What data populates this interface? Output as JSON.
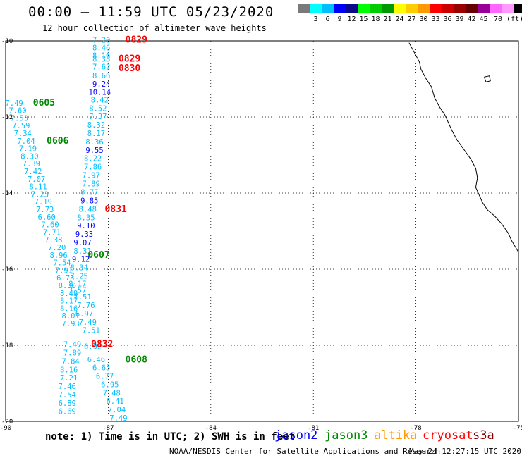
{
  "title": "00:00 — 11:59 UTC 05/23/2020",
  "subtitle": "12 hour collection of altimeter wave heights",
  "colorbar": {
    "colors": [
      "#7a7a7a",
      "#00ffff",
      "#00bfff",
      "#0000ff",
      "#0a0a8a",
      "#00ff00",
      "#00cc00",
      "#009900",
      "#ffff00",
      "#ffcc00",
      "#ff9900",
      "#ff0000",
      "#cc0000",
      "#990000",
      "#660000",
      "#990099",
      "#ff66ff",
      "#ff99ff",
      "#000000"
    ],
    "labels": [
      "3",
      "6",
      "9",
      "12",
      "15",
      "18",
      "21",
      "24",
      "27",
      "30",
      "33",
      "36",
      "39",
      "42",
      "45",
      "70 (ft)"
    ]
  },
  "axes": {
    "x_ticks": [
      "-90",
      "-87",
      "-84",
      "-81",
      "-78",
      "-75"
    ],
    "y_ticks": [
      "-10",
      "-12",
      "-14",
      "-16",
      "-18",
      "-20"
    ]
  },
  "passes": [
    {
      "label": "0829",
      "color": "#ff0000",
      "lon": -86.5,
      "lat": -10.05
    },
    {
      "label": "0829",
      "color": "#ff0000",
      "lon": -86.7,
      "lat": -10.55
    },
    {
      "label": "0830",
      "color": "#ff0000",
      "lon": -86.7,
      "lat": -10.8
    },
    {
      "label": "0605",
      "color": "#008800",
      "lon": -89.2,
      "lat": -11.7
    },
    {
      "label": "0606",
      "color": "#008800",
      "lon": -88.8,
      "lat": -12.7
    },
    {
      "label": "0831",
      "color": "#ff0000",
      "lon": -87.1,
      "lat": -14.5
    },
    {
      "label": "0607",
      "color": "#008800",
      "lon": -87.6,
      "lat": -15.7
    },
    {
      "label": "0832",
      "color": "#ff0000",
      "lon": -87.5,
      "lat": -18.05
    },
    {
      "label": "0608",
      "color": "#008800",
      "lon": -86.5,
      "lat": -18.45
    }
  ],
  "wave_heights": [
    {
      "v": "7.20",
      "lon": -87.2,
      "lat": -10.05,
      "c": "#00bfff"
    },
    {
      "v": "8.46",
      "lon": -87.2,
      "lat": -10.25,
      "c": "#00bfff"
    },
    {
      "v": "8.16",
      "lon": -87.2,
      "lat": -10.45,
      "c": "#00bfff"
    },
    {
      "v": "8.38",
      "lon": -87.2,
      "lat": -10.55,
      "c": "#00bfff"
    },
    {
      "v": "7.62",
      "lon": -87.2,
      "lat": -10.75,
      "c": "#00bfff"
    },
    {
      "v": "8.66",
      "lon": -87.2,
      "lat": -10.98,
      "c": "#00bfff"
    },
    {
      "v": "9.24",
      "lon": -87.2,
      "lat": -11.2,
      "c": "#0000ff"
    },
    {
      "v": "10.14",
      "lon": -87.25,
      "lat": -11.42,
      "c": "#0000ff"
    },
    {
      "v": "8.42",
      "lon": -87.25,
      "lat": -11.62,
      "c": "#00bfff"
    },
    {
      "v": "8.52",
      "lon": -87.3,
      "lat": -11.84,
      "c": "#00bfff"
    },
    {
      "v": "7.37",
      "lon": -87.3,
      "lat": -12.06,
      "c": "#00bfff"
    },
    {
      "v": "8.32",
      "lon": -87.35,
      "lat": -12.28,
      "c": "#00bfff"
    },
    {
      "v": "8.17",
      "lon": -87.35,
      "lat": -12.5,
      "c": "#00bfff"
    },
    {
      "v": "8.36",
      "lon": -87.4,
      "lat": -12.72,
      "c": "#00bfff"
    },
    {
      "v": "9.55",
      "lon": -87.4,
      "lat": -12.94,
      "c": "#0000ff"
    },
    {
      "v": "8.22",
      "lon": -87.45,
      "lat": -13.16,
      "c": "#00bfff"
    },
    {
      "v": "7.86",
      "lon": -87.45,
      "lat": -13.38,
      "c": "#00bfff"
    },
    {
      "v": "7.97",
      "lon": -87.5,
      "lat": -13.6,
      "c": "#00bfff"
    },
    {
      "v": "7.89",
      "lon": -87.5,
      "lat": -13.82,
      "c": "#00bfff"
    },
    {
      "v": "8.77",
      "lon": -87.55,
      "lat": -14.05,
      "c": "#00bfff"
    },
    {
      "v": "9.85",
      "lon": -87.55,
      "lat": -14.27,
      "c": "#0000ff"
    },
    {
      "v": "8.48",
      "lon": -87.6,
      "lat": -14.49,
      "c": "#00bfff"
    },
    {
      "v": "8.35",
      "lon": -87.65,
      "lat": -14.71,
      "c": "#00bfff"
    },
    {
      "v": "9.10",
      "lon": -87.65,
      "lat": -14.93,
      "c": "#0000ff"
    },
    {
      "v": "9.33",
      "lon": -87.7,
      "lat": -15.15,
      "c": "#0000ff"
    },
    {
      "v": "9.07",
      "lon": -87.75,
      "lat": -15.37,
      "c": "#0000ff"
    },
    {
      "v": "8.31",
      "lon": -87.75,
      "lat": -15.59,
      "c": "#00bfff"
    },
    {
      "v": "9.12",
      "lon": -87.8,
      "lat": -15.81,
      "c": "#0000ff"
    },
    {
      "v": "8.34",
      "lon": -87.85,
      "lat": -16.03,
      "c": "#00bfff"
    },
    {
      "v": "7.25",
      "lon": -87.85,
      "lat": -16.25,
      "c": "#00bfff"
    },
    {
      "v": "8.17",
      "lon": -87.9,
      "lat": -16.45,
      "c": "#00bfff"
    },
    {
      "v": "7.57",
      "lon": -87.9,
      "lat": -16.62,
      "c": "#00bfff"
    },
    {
      "v": "7.51",
      "lon": -87.75,
      "lat": -16.8,
      "c": "#00bfff"
    },
    {
      "v": "7.76",
      "lon": -87.65,
      "lat": -17.02,
      "c": "#00bfff"
    },
    {
      "v": "6.97",
      "lon": -87.7,
      "lat": -17.24,
      "c": "#00bfff"
    },
    {
      "v": "7.49",
      "lon": -87.6,
      "lat": -17.46,
      "c": "#00bfff"
    },
    {
      "v": "7.51",
      "lon": -87.5,
      "lat": -17.68,
      "c": "#00bfff"
    },
    {
      "v": "6.92",
      "lon": -87.45,
      "lat": -18.1,
      "c": "#00bfff"
    },
    {
      "v": "6.46",
      "lon": -87.35,
      "lat": -18.44,
      "c": "#00bfff"
    },
    {
      "v": "6.65",
      "lon": -87.2,
      "lat": -18.66,
      "c": "#00bfff"
    },
    {
      "v": "6.77",
      "lon": -87.1,
      "lat": -18.88,
      "c": "#00bfff"
    },
    {
      "v": "6.95",
      "lon": -86.95,
      "lat": -19.1,
      "c": "#00bfff"
    },
    {
      "v": "7.48",
      "lon": -86.9,
      "lat": -19.32,
      "c": "#00bfff"
    },
    {
      "v": "6.41",
      "lon": -86.8,
      "lat": -19.54,
      "c": "#00bfff"
    },
    {
      "v": "7.04",
      "lon": -86.75,
      "lat": -19.76,
      "c": "#00bfff"
    },
    {
      "v": "7.49",
      "lon": -86.7,
      "lat": -19.98,
      "c": "#00bfff"
    },
    {
      "v": "7.49",
      "lon": -89.75,
      "lat": -11.7,
      "c": "#00bfff"
    },
    {
      "v": "7.60",
      "lon": -89.65,
      "lat": -11.9,
      "c": "#00bfff"
    },
    {
      "v": "7.53",
      "lon": -89.6,
      "lat": -12.1,
      "c": "#00bfff"
    },
    {
      "v": "7.59",
      "lon": -89.55,
      "lat": -12.3,
      "c": "#00bfff"
    },
    {
      "v": "7.34",
      "lon": -89.5,
      "lat": -12.5,
      "c": "#00bfff"
    },
    {
      "v": "7.04",
      "lon": -89.4,
      "lat": -12.7,
      "c": "#00bfff"
    },
    {
      "v": "7.19",
      "lon": -89.35,
      "lat": -12.9,
      "c": "#00bfff"
    },
    {
      "v": "8.30",
      "lon": -89.3,
      "lat": -13.1,
      "c": "#00bfff"
    },
    {
      "v": "7.39",
      "lon": -89.25,
      "lat": -13.3,
      "c": "#00bfff"
    },
    {
      "v": "7.42",
      "lon": -89.2,
      "lat": -13.5,
      "c": "#00bfff"
    },
    {
      "v": "7.07",
      "lon": -89.1,
      "lat": -13.7,
      "c": "#00bfff"
    },
    {
      "v": "8.11",
      "lon": -89.05,
      "lat": -13.9,
      "c": "#00bfff"
    },
    {
      "v": "7.23",
      "lon": -89.0,
      "lat": -14.1,
      "c": "#00bfff"
    },
    {
      "v": "7.19",
      "lon": -88.9,
      "lat": -14.3,
      "c": "#00bfff"
    },
    {
      "v": "7.73",
      "lon": -88.85,
      "lat": -14.5,
      "c": "#00bfff"
    },
    {
      "v": "6.60",
      "lon": -88.8,
      "lat": -14.7,
      "c": "#00bfff"
    },
    {
      "v": "7.60",
      "lon": -88.7,
      "lat": -14.9,
      "c": "#00bfff"
    },
    {
      "v": "7.71",
      "lon": -88.65,
      "lat": -15.1,
      "c": "#00bfff"
    },
    {
      "v": "7.38",
      "lon": -88.6,
      "lat": -15.3,
      "c": "#00bfff"
    },
    {
      "v": "7.20",
      "lon": -88.5,
      "lat": -15.5,
      "c": "#00bfff"
    },
    {
      "v": "8.96",
      "lon": -88.45,
      "lat": -15.7,
      "c": "#00bfff"
    },
    {
      "v": "7.54",
      "lon": -88.35,
      "lat": -15.9,
      "c": "#00bfff"
    },
    {
      "v": "7.91",
      "lon": -88.3,
      "lat": -16.1,
      "c": "#00bfff"
    },
    {
      "v": "6.73",
      "lon": -88.25,
      "lat": -16.3,
      "c": "#00bfff"
    },
    {
      "v": "8.30",
      "lon": -88.2,
      "lat": -16.5,
      "c": "#00bfff"
    },
    {
      "v": "8.49",
      "lon": -88.15,
      "lat": -16.7,
      "c": "#00bfff"
    },
    {
      "v": "8.17",
      "lon": -88.15,
      "lat": -16.9,
      "c": "#00bfff"
    },
    {
      "v": "8.16",
      "lon": -88.15,
      "lat": -17.1,
      "c": "#00bfff"
    },
    {
      "v": "8.01",
      "lon": -88.1,
      "lat": -17.3,
      "c": "#00bfff"
    },
    {
      "v": "7.93",
      "lon": -88.1,
      "lat": -17.5,
      "c": "#00bfff"
    },
    {
      "v": "7.49",
      "lon": -88.05,
      "lat": -18.05,
      "c": "#00bfff"
    },
    {
      "v": "7.89",
      "lon": -88.05,
      "lat": -18.27,
      "c": "#00bfff"
    },
    {
      "v": "7.84",
      "lon": -88.1,
      "lat": -18.49,
      "c": "#00bfff"
    },
    {
      "v": "8.16",
      "lon": -88.15,
      "lat": -18.71,
      "c": "#00bfff"
    },
    {
      "v": "7.21",
      "lon": -88.15,
      "lat": -18.93,
      "c": "#00bfff"
    },
    {
      "v": "7.46",
      "lon": -88.2,
      "lat": -19.15,
      "c": "#00bfff"
    },
    {
      "v": "7.54",
      "lon": -88.2,
      "lat": -19.37,
      "c": "#00bfff"
    },
    {
      "v": "6.89",
      "lon": -88.2,
      "lat": -19.59,
      "c": "#00bfff"
    },
    {
      "v": "6.69",
      "lon": -88.2,
      "lat": -19.81,
      "c": "#00bfff"
    }
  ],
  "coastline": [
    [
      -78.2,
      -10.05
    ],
    [
      -78.05,
      -10.3
    ],
    [
      -77.9,
      -10.55
    ],
    [
      -77.85,
      -10.75
    ],
    [
      -77.7,
      -11.0
    ],
    [
      -77.55,
      -11.2
    ],
    [
      -77.45,
      -11.5
    ],
    [
      -77.3,
      -11.75
    ],
    [
      -77.15,
      -11.95
    ],
    [
      -77.05,
      -12.15
    ],
    [
      -76.95,
      -12.35
    ],
    [
      -76.8,
      -12.6
    ],
    [
      -76.6,
      -12.85
    ],
    [
      -76.4,
      -13.1
    ],
    [
      -76.25,
      -13.35
    ],
    [
      -76.2,
      -13.6
    ],
    [
      -76.25,
      -13.85
    ],
    [
      -76.15,
      -14.05
    ],
    [
      -76.05,
      -14.25
    ],
    [
      -75.9,
      -14.45
    ],
    [
      -75.7,
      -14.6
    ],
    [
      -75.5,
      -14.8
    ],
    [
      -75.3,
      -15.05
    ],
    [
      -75.2,
      -15.25
    ],
    [
      -75.1,
      -15.4
    ],
    [
      -75.0,
      -15.55
    ]
  ],
  "island": [
    [
      -76.0,
      -10.95
    ],
    [
      -75.85,
      -10.92
    ],
    [
      -75.82,
      -11.05
    ],
    [
      -75.95,
      -11.08
    ],
    [
      -76.0,
      -10.95
    ]
  ],
  "legend": {
    "note": "note: 1) Time is in UTC; 2) SWH is in feet",
    "items": [
      {
        "label": "jason2",
        "color": "#0000ff"
      },
      {
        "label": "jason3",
        "color": "#008800"
      },
      {
        "label": "altika",
        "color": "#ff9900"
      },
      {
        "label": "cryosat",
        "color": "#ff0000"
      },
      {
        "label": "s3a",
        "color": "#880000"
      }
    ]
  },
  "credit": "NOAA/NESDIS Center for Satellite Applications and Research",
  "timestamp": "May 24 12:27:15 UTC 2020"
}
